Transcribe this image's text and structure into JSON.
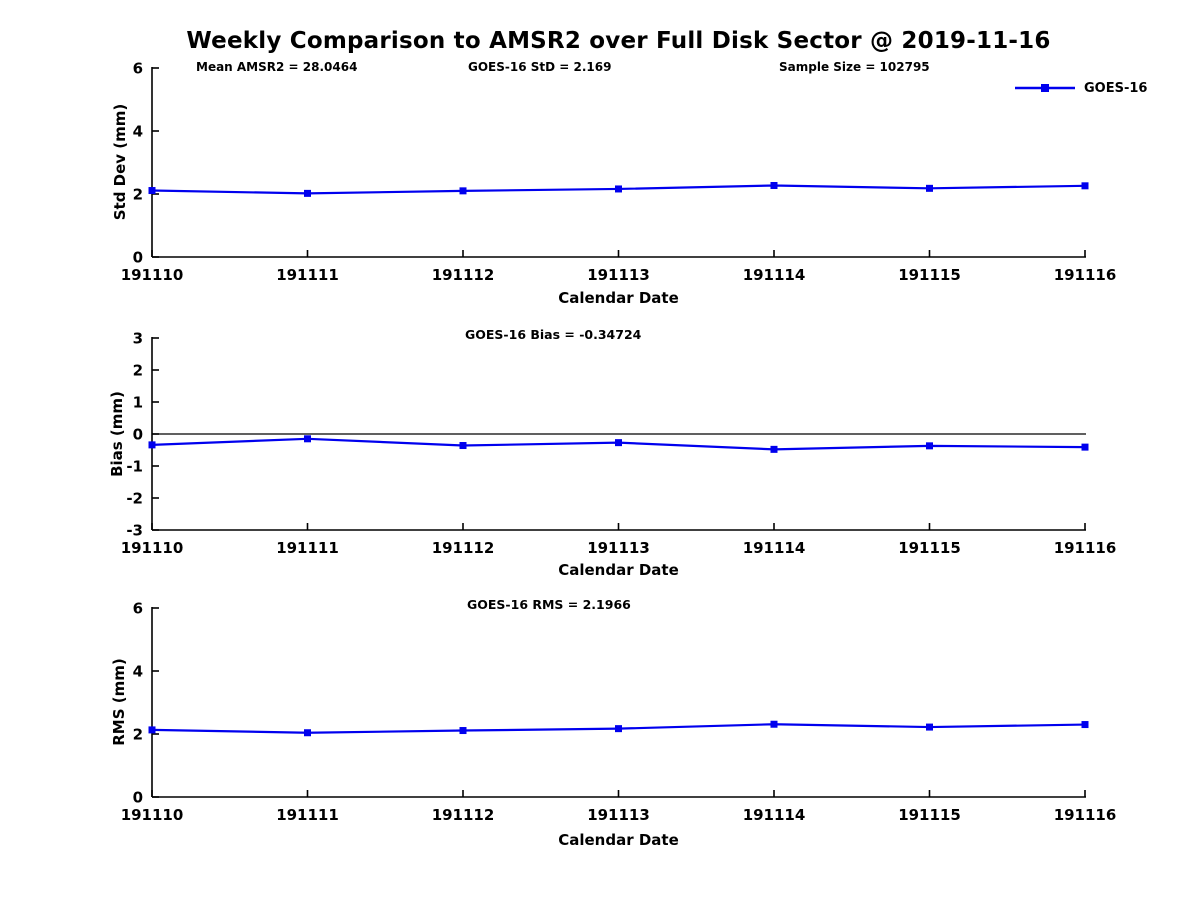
{
  "title": "Weekly Comparison to AMSR2 over Full Disk Sector @ 2019-11-16",
  "annotations": {
    "mean_amsr2": "Mean AMSR2 = 28.0464",
    "goes16_std": "GOES-16 StD = 2.169",
    "sample_size": "Sample Size = 102795"
  },
  "legend": {
    "label": "GOES-16",
    "color": "#0000ee"
  },
  "line_color": "#0000ee",
  "chart_data": [
    {
      "type": "line",
      "title": "",
      "ylabel": "Std Dev (mm)",
      "xlabel": "Calendar Date",
      "x": [
        "191110",
        "191111",
        "191112",
        "191113",
        "191114",
        "191115",
        "191116"
      ],
      "series": [
        {
          "name": "GOES-16",
          "color": "#0000ee",
          "marker": "square",
          "values": [
            2.11,
            2.02,
            2.1,
            2.16,
            2.27,
            2.18,
            2.26
          ]
        }
      ],
      "ylim": [
        0,
        6
      ],
      "yticks": [
        0,
        2,
        4,
        6
      ],
      "zero_line": false,
      "grid": false,
      "legend_position": "top-right"
    },
    {
      "type": "line",
      "title": "GOES-16 Bias  = -0.34724",
      "ylabel": "Bias (mm)",
      "xlabel": "Calendar Date",
      "x": [
        "191110",
        "191111",
        "191112",
        "191113",
        "191114",
        "191115",
        "191116"
      ],
      "series": [
        {
          "name": "GOES-16",
          "color": "#0000ee",
          "marker": "square",
          "values": [
            -0.34,
            -0.15,
            -0.36,
            -0.27,
            -0.48,
            -0.37,
            -0.41
          ]
        }
      ],
      "ylim": [
        -3,
        3
      ],
      "yticks": [
        -3,
        -2,
        -1,
        0,
        1,
        2,
        3
      ],
      "zero_line": true,
      "grid": false
    },
    {
      "type": "line",
      "title": "GOES-16 RMS = 2.1966",
      "ylabel": "RMS (mm)",
      "xlabel": "Calendar Date",
      "x": [
        "191110",
        "191111",
        "191112",
        "191113",
        "191114",
        "191115",
        "191116"
      ],
      "series": [
        {
          "name": "GOES-16",
          "color": "#0000ee",
          "marker": "square",
          "values": [
            2.13,
            2.04,
            2.11,
            2.17,
            2.31,
            2.22,
            2.3
          ]
        }
      ],
      "ylim": [
        0,
        6
      ],
      "yticks": [
        0,
        2,
        4,
        6
      ],
      "zero_line": false,
      "grid": false
    }
  ]
}
